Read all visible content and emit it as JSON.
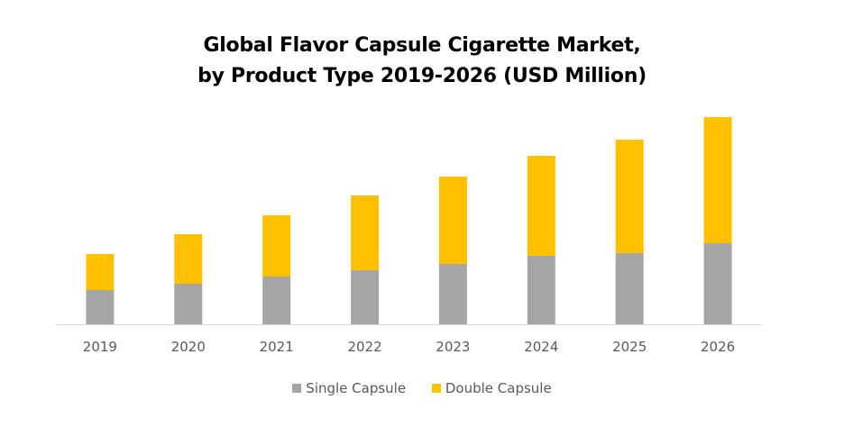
{
  "chart_data": {
    "type": "bar",
    "stacked": true,
    "title": "Global Flavor Capsule Cigarette Market,",
    "subtitle": "by Product Type 2019-2026 (USD Million)",
    "xlabel": "",
    "ylabel": "",
    "categories": [
      "2019",
      "2020",
      "2021",
      "2022",
      "2023",
      "2024",
      "2025",
      "2026"
    ],
    "series": [
      {
        "name": "Single Capsule",
        "color": "#A5A5A5",
        "values": [
          38,
          45,
          53,
          60,
          67,
          76,
          79,
          90
        ]
      },
      {
        "name": "Double Capsule",
        "color": "#FFC000",
        "values": [
          40,
          55,
          68,
          83,
          97,
          111,
          126,
          140
        ]
      }
    ],
    "ylim": [
      0,
      230
    ],
    "grid": false,
    "legend_position": "bottom"
  }
}
